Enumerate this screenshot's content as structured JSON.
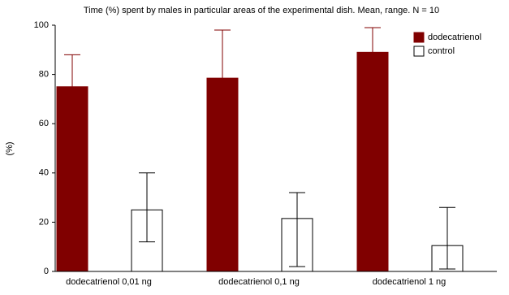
{
  "chart_data": {
    "type": "bar",
    "title": "Time (%) spent by males in particular areas of the experimental dish. Mean, range. N = 10",
    "y_label": "(%)",
    "categories": [
      "dodecatrienol 0,01 ng",
      "dodecatrienol 0,1 ng",
      "dodecatrienol 1 ng"
    ],
    "series": [
      {
        "name": "dodecatrienol",
        "color": "#800000",
        "values": [
          75,
          78.5,
          89
        ],
        "high": [
          88,
          98,
          99
        ]
      },
      {
        "name": "control",
        "color": "#ffffff",
        "values": [
          25,
          21.5,
          10.5
        ],
        "high": [
          40,
          32,
          26
        ],
        "low": [
          12,
          2,
          1
        ]
      }
    ],
    "ylim": [
      0,
      100
    ],
    "yticks": [
      0,
      20,
      40,
      60,
      80,
      100
    ],
    "legend": "top-right"
  }
}
